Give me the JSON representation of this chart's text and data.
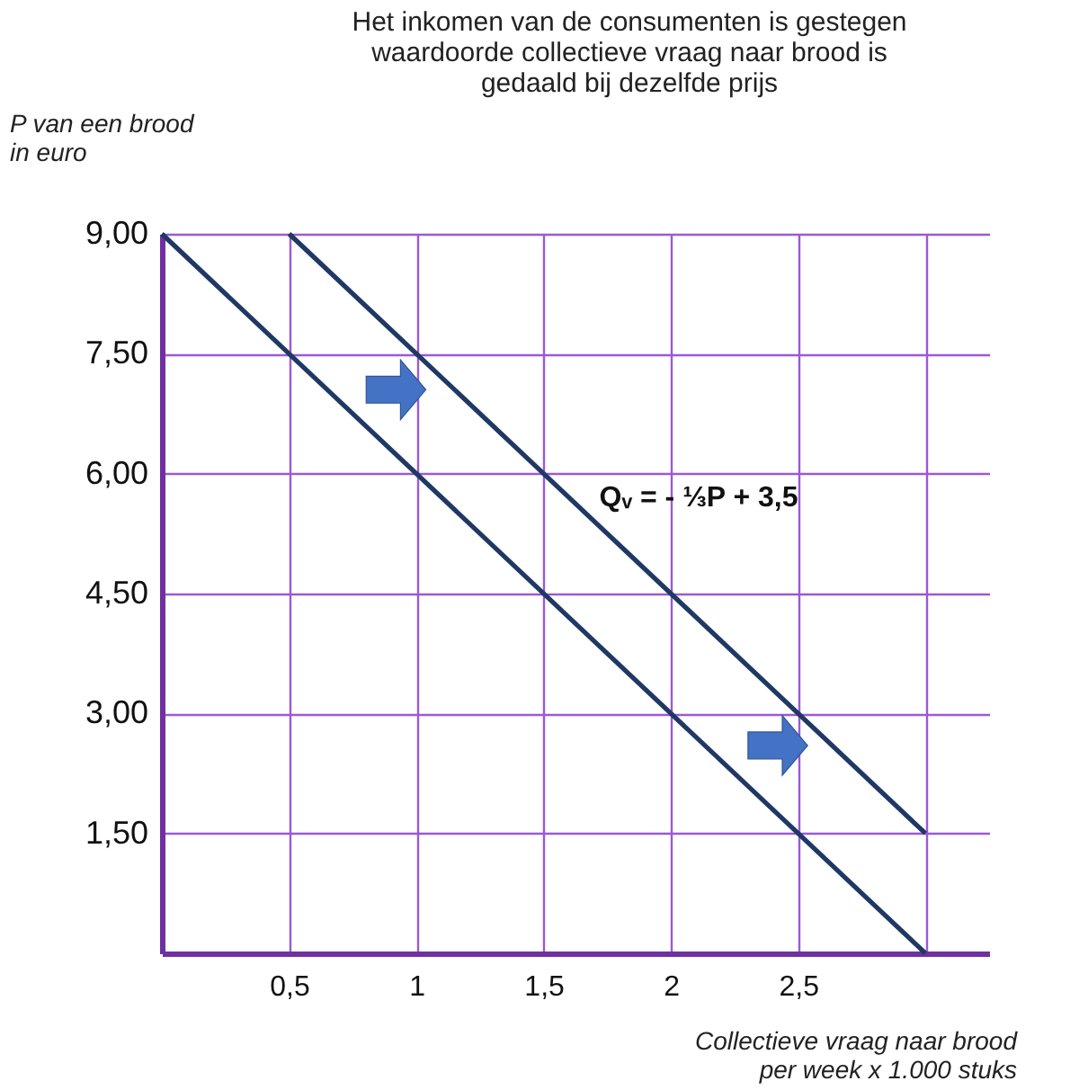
{
  "chart_data": {
    "type": "line",
    "title": "Het inkomen van de consumenten is gestegen waardoorde collectieve vraag naar brood is gedaald bij dezelfde prijs",
    "xlabel": "Collectieve vraag naar brood per week x 1.000 stuks",
    "ylabel": "P van een brood in euro",
    "annotations": [
      "Qᵥ = - ⅓P + 3,5"
    ],
    "series": [
      {
        "color": "#1f3864",
        "x": [
          0,
          3
        ],
        "values": [
          9,
          0
        ]
      },
      {
        "color": "#1f3864",
        "x": [
          0.5,
          3
        ],
        "values": [
          9,
          1.5
        ]
      }
    ],
    "xlim": [
      0,
      3.25
    ],
    "xticks": [
      {
        "value": 0.5,
        "label": "0,5"
      },
      1,
      {
        "value": 1.5,
        "label": "1,5"
      },
      2,
      {
        "value": 2.5,
        "label": "2,5"
      },
      {
        "value": 3,
        "label": null
      }
    ],
    "ylim": [
      0,
      9
    ],
    "yticks": [
      {
        "value": 1.5,
        "label": "1,50"
      },
      {
        "value": 3,
        "label": "3,00"
      },
      {
        "value": 4.5,
        "label": "4,50"
      },
      {
        "value": 6,
        "label": "6,00"
      },
      {
        "value": 7.5,
        "label": "7,50"
      },
      {
        "value": 9,
        "label": "9,00"
      }
    ],
    "grid": true,
    "marker": "none",
    "line_style": "solid",
    "legend": false
  }
}
